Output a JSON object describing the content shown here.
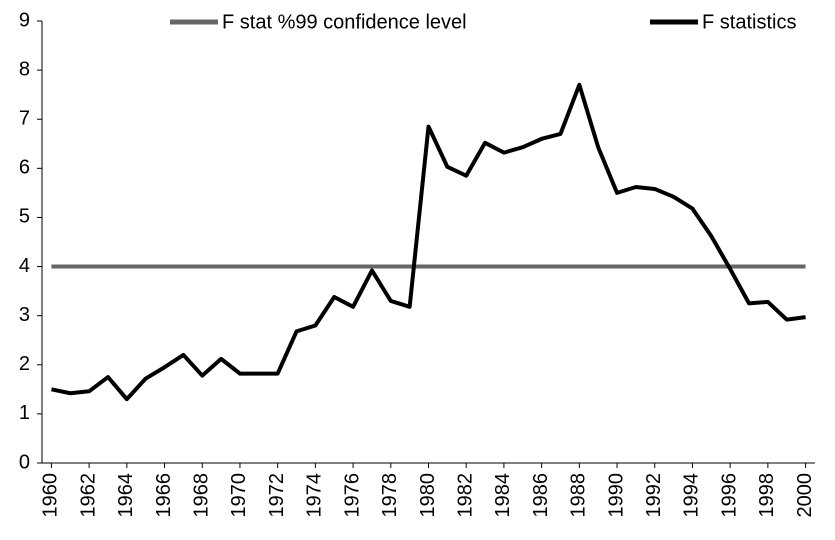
{
  "chart_data": {
    "type": "line",
    "x": [
      1960,
      1961,
      1962,
      1963,
      1964,
      1965,
      1966,
      1967,
      1968,
      1969,
      1970,
      1971,
      1972,
      1973,
      1974,
      1975,
      1976,
      1977,
      1978,
      1979,
      1980,
      1981,
      1982,
      1983,
      1984,
      1985,
      1986,
      1987,
      1988,
      1989,
      1990,
      1991,
      1992,
      1993,
      1994,
      1995,
      1996,
      1997,
      1998,
      1999,
      2000
    ],
    "series": [
      {
        "name": "F stat %99 confidence level",
        "color": "#666666",
        "values": [
          4,
          4,
          4,
          4,
          4,
          4,
          4,
          4,
          4,
          4,
          4,
          4,
          4,
          4,
          4,
          4,
          4,
          4,
          4,
          4,
          4,
          4,
          4,
          4,
          4,
          4,
          4,
          4,
          4,
          4,
          4,
          4,
          4,
          4,
          4,
          4,
          4,
          4,
          4,
          4,
          4
        ]
      },
      {
        "name": "F statistics",
        "color": "#000000",
        "values": [
          1.5,
          1.42,
          1.46,
          1.75,
          1.3,
          1.72,
          1.95,
          2.2,
          1.78,
          2.12,
          1.82,
          1.82,
          1.82,
          2.68,
          2.8,
          3.38,
          3.18,
          3.92,
          3.3,
          3.18,
          6.85,
          6.03,
          5.85,
          6.52,
          6.32,
          6.43,
          6.6,
          6.7,
          7.7,
          6.43,
          5.5,
          5.62,
          5.58,
          5.42,
          5.18,
          4.62,
          3.95,
          3.25,
          3.28,
          2.92,
          2.97
        ]
      }
    ],
    "xlim": [
      1959.5,
      2000.5
    ],
    "xticks": [
      1960,
      1962,
      1964,
      1966,
      1968,
      1970,
      1972,
      1974,
      1976,
      1978,
      1980,
      1982,
      1984,
      1986,
      1988,
      1990,
      1992,
      1994,
      1996,
      1998,
      2000
    ],
    "ylim": [
      0,
      9
    ],
    "yticks": [
      0,
      1,
      2,
      3,
      4,
      5,
      6,
      7,
      8,
      9
    ],
    "legend": "top"
  }
}
